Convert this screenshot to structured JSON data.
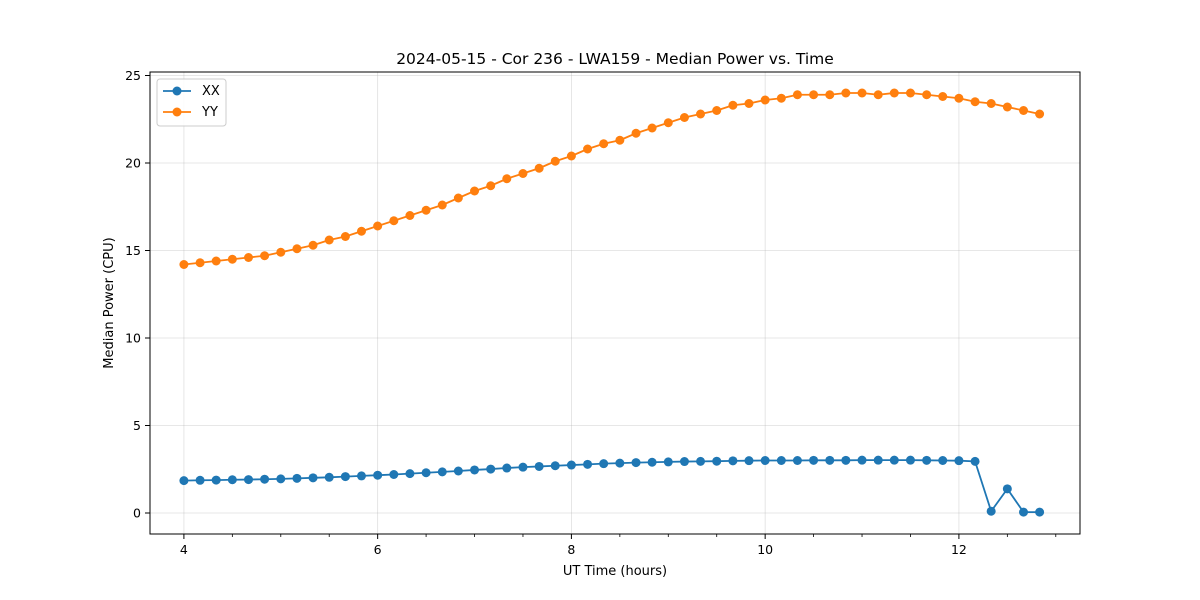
{
  "chart_data": {
    "type": "line",
    "title": "2024-05-15 - Cor 236 - LWA159 - Median Power vs. Time",
    "xlabel": "UT Time (hours)",
    "ylabel": "Median Power (CPU)",
    "xlim": [
      3.65,
      13.25
    ],
    "ylim": [
      -1.2,
      25.2
    ],
    "xticks": [
      4,
      6,
      8,
      10,
      12
    ],
    "xticks_minor": [
      4.5,
      5,
      5.5,
      6.5,
      7,
      7.5,
      8.5,
      9,
      9.5,
      10.5,
      11,
      11.5,
      12.5,
      13
    ],
    "yticks": [
      0,
      5,
      10,
      15,
      20,
      25
    ],
    "grid": true,
    "legend_position": "top-left",
    "x": [
      4.0,
      4.167,
      4.333,
      4.5,
      4.667,
      4.833,
      5.0,
      5.167,
      5.333,
      5.5,
      5.667,
      5.833,
      6.0,
      6.167,
      6.333,
      6.5,
      6.667,
      6.833,
      7.0,
      7.167,
      7.333,
      7.5,
      7.667,
      7.833,
      8.0,
      8.167,
      8.333,
      8.5,
      8.667,
      8.833,
      9.0,
      9.167,
      9.333,
      9.5,
      9.667,
      9.833,
      10.0,
      10.167,
      10.333,
      10.5,
      10.667,
      10.833,
      11.0,
      11.167,
      11.333,
      11.5,
      11.667,
      11.833,
      12.0,
      12.167,
      12.333,
      12.5,
      12.667,
      12.833
    ],
    "series": [
      {
        "name": "XX",
        "color": "#1f77b4",
        "values": [
          1.85,
          1.87,
          1.88,
          1.9,
          1.91,
          1.93,
          1.95,
          1.98,
          2.01,
          2.04,
          2.08,
          2.12,
          2.16,
          2.2,
          2.25,
          2.3,
          2.35,
          2.4,
          2.46,
          2.51,
          2.57,
          2.62,
          2.66,
          2.7,
          2.74,
          2.78,
          2.82,
          2.85,
          2.88,
          2.9,
          2.92,
          2.94,
          2.95,
          2.96,
          2.98,
          2.99,
          3.0,
          3.0,
          3.0,
          3.01,
          3.01,
          3.01,
          3.02,
          3.02,
          3.02,
          3.02,
          3.01,
          3.0,
          2.99,
          2.95,
          0.1,
          1.38,
          0.05,
          0.05
        ]
      },
      {
        "name": "YY",
        "color": "#ff7f0e",
        "values": [
          14.2,
          14.3,
          14.4,
          14.5,
          14.6,
          14.7,
          14.9,
          15.1,
          15.3,
          15.6,
          15.8,
          16.1,
          16.4,
          16.7,
          17.0,
          17.3,
          17.6,
          18.0,
          18.4,
          18.7,
          19.1,
          19.4,
          19.7,
          20.1,
          20.4,
          20.8,
          21.1,
          21.3,
          21.7,
          22.0,
          22.3,
          22.6,
          22.8,
          23.0,
          23.3,
          23.4,
          23.6,
          23.7,
          23.9,
          23.9,
          23.9,
          24.0,
          24.0,
          23.9,
          24.0,
          24.0,
          23.9,
          23.8,
          23.7,
          23.5,
          23.4,
          23.2,
          23.0,
          22.8
        ]
      }
    ]
  }
}
